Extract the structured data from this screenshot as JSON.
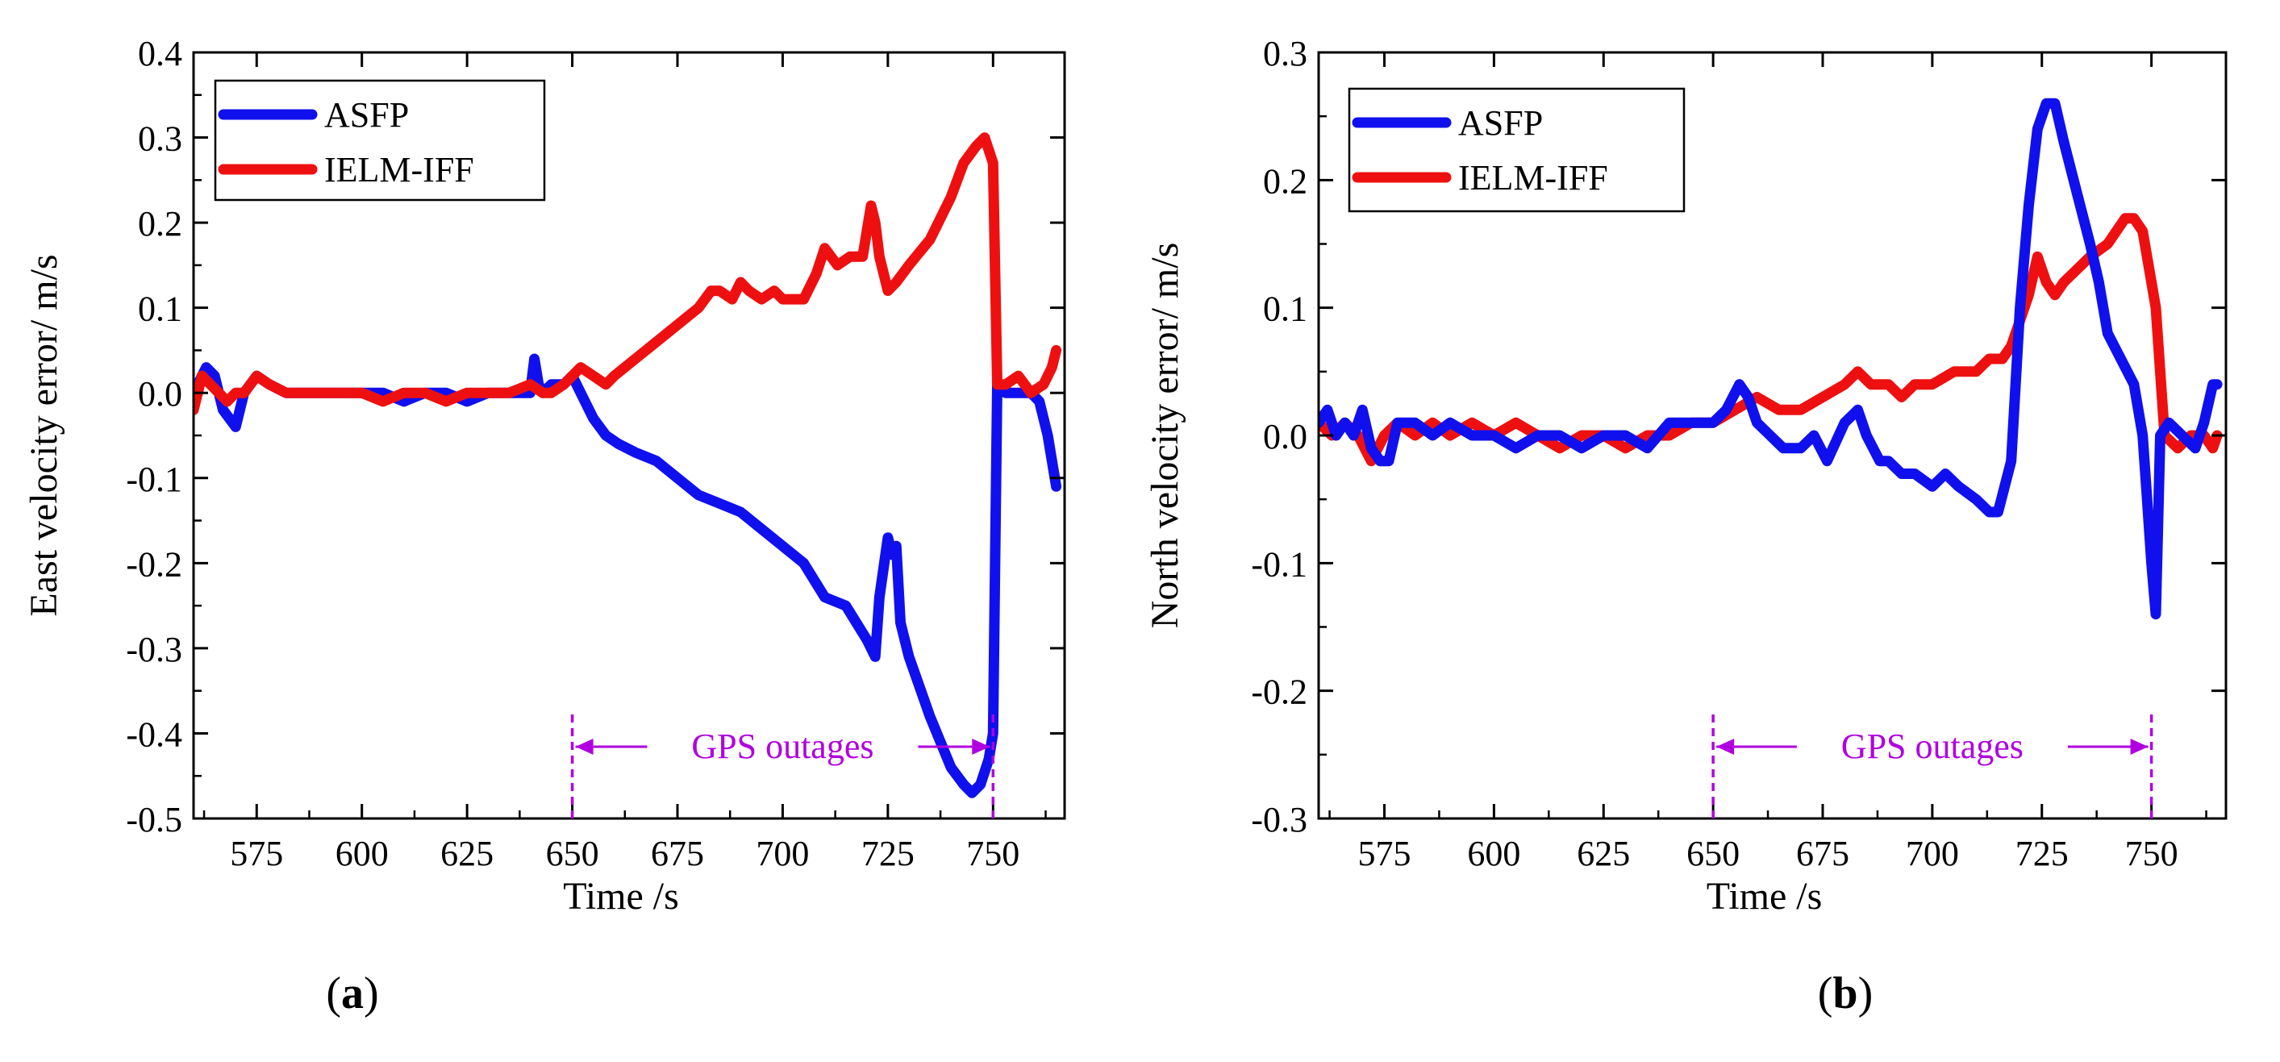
{
  "colors": {
    "asfp": "#1010ee",
    "ielm": "#ee1010",
    "outage": "#b000e0",
    "axis": "#000000"
  },
  "chart_data": [
    {
      "type": "line",
      "panel_open": "(",
      "panel_letter": "a",
      "panel_close": ")",
      "xlabel": "Time /s",
      "ylabel": "East velocity error/ m/s",
      "xlim": [
        560,
        767
      ],
      "ylim": [
        -0.5,
        0.4
      ],
      "xticks": [
        575,
        600,
        625,
        650,
        675,
        700,
        725,
        750
      ],
      "xtick_labels": [
        "575",
        "600",
        "625",
        "650",
        "675",
        "700",
        "725",
        "750"
      ],
      "yticks": [
        -0.5,
        -0.4,
        -0.3,
        -0.2,
        -0.1,
        0.0,
        0.1,
        0.2,
        0.3,
        0.4
      ],
      "ytick_labels": [
        "-0.5",
        "-0.4",
        "-0.3",
        "-0.2",
        "-0.1",
        "0.0",
        "0.1",
        "0.2",
        "0.3",
        "0.4"
      ],
      "legend": [
        "ASFP",
        "IELM-IFF"
      ],
      "legend_position": "top-left",
      "outage": {
        "start": 650,
        "end": 750,
        "label": "GPS outages"
      },
      "series": [
        {
          "name": "ASFP",
          "x": [
            560,
            563,
            565,
            567,
            570,
            572,
            575,
            578,
            582,
            586,
            590,
            595,
            600,
            605,
            610,
            615,
            620,
            625,
            630,
            635,
            640,
            641,
            642,
            643,
            645,
            648,
            650,
            652,
            655,
            658,
            661,
            665,
            670,
            675,
            680,
            685,
            690,
            695,
            700,
            705,
            710,
            715,
            720,
            722,
            723,
            725,
            726,
            727,
            728,
            730,
            735,
            740,
            743,
            745,
            747,
            749,
            750,
            751,
            753,
            756,
            759,
            761,
            763,
            765
          ],
          "values": [
            0.0,
            0.03,
            0.02,
            -0.02,
            -0.04,
            0.0,
            0.02,
            0.01,
            0.0,
            0.0,
            0.0,
            0.0,
            0.0,
            0.0,
            -0.01,
            0.0,
            0.0,
            -0.01,
            0.0,
            0.0,
            0.0,
            0.04,
            0.01,
            0.0,
            0.01,
            0.01,
            0.02,
            0.0,
            -0.03,
            -0.05,
            -0.06,
            -0.07,
            -0.08,
            -0.1,
            -0.12,
            -0.13,
            -0.14,
            -0.16,
            -0.18,
            -0.2,
            -0.24,
            -0.25,
            -0.29,
            -0.31,
            -0.24,
            -0.17,
            -0.19,
            -0.18,
            -0.27,
            -0.31,
            -0.38,
            -0.44,
            -0.46,
            -0.47,
            -0.46,
            -0.43,
            -0.4,
            0.01,
            0.0,
            0.0,
            0.0,
            -0.01,
            -0.05,
            -0.11
          ]
        },
        {
          "name": "IELM-IFF",
          "x": [
            560,
            562,
            564,
            566,
            568,
            570,
            572,
            575,
            578,
            582,
            586,
            590,
            595,
            600,
            605,
            610,
            615,
            620,
            625,
            630,
            635,
            640,
            643,
            645,
            648,
            650,
            652,
            655,
            658,
            660,
            665,
            670,
            675,
            680,
            683,
            685,
            688,
            690,
            692,
            695,
            698,
            700,
            705,
            708,
            710,
            713,
            716,
            719,
            721,
            722,
            723,
            725,
            727,
            730,
            735,
            740,
            743,
            746,
            748,
            750,
            751,
            753,
            756,
            759,
            762,
            764,
            765
          ],
          "values": [
            -0.02,
            0.02,
            0.01,
            0.0,
            -0.01,
            0.0,
            0.0,
            0.02,
            0.01,
            0.0,
            0.0,
            0.0,
            0.0,
            0.0,
            -0.01,
            0.0,
            0.0,
            -0.01,
            0.0,
            0.0,
            0.0,
            0.01,
            0.0,
            0.0,
            0.01,
            0.02,
            0.03,
            0.02,
            0.01,
            0.02,
            0.04,
            0.06,
            0.08,
            0.1,
            0.12,
            0.12,
            0.11,
            0.13,
            0.12,
            0.11,
            0.12,
            0.11,
            0.11,
            0.14,
            0.17,
            0.15,
            0.16,
            0.16,
            0.22,
            0.2,
            0.16,
            0.12,
            0.13,
            0.15,
            0.18,
            0.23,
            0.27,
            0.29,
            0.3,
            0.27,
            0.01,
            0.01,
            0.02,
            0.0,
            0.01,
            0.03,
            0.05
          ]
        }
      ]
    },
    {
      "type": "line",
      "panel_open": "(",
      "panel_letter": "b",
      "panel_close": ")",
      "xlabel": "Time /s",
      "ylabel": "North velocity error/ m/s",
      "xlim": [
        560,
        767
      ],
      "ylim": [
        -0.3,
        0.3
      ],
      "xticks": [
        575,
        600,
        625,
        650,
        675,
        700,
        725,
        750
      ],
      "xtick_labels": [
        "575",
        "600",
        "625",
        "650",
        "675",
        "700",
        "725",
        "750"
      ],
      "yticks": [
        -0.3,
        -0.2,
        -0.1,
        0.0,
        0.1,
        0.2,
        0.3
      ],
      "ytick_labels": [
        "-0.3",
        "-0.2",
        "-0.1",
        "0.0",
        "0.1",
        "0.2",
        "0.3"
      ],
      "legend": [
        "ASFP",
        "IELM-IFF"
      ],
      "legend_position": "top-left",
      "outage": {
        "start": 650,
        "end": 750,
        "label": "GPS outages"
      },
      "series": [
        {
          "name": "ASFP",
          "x": [
            560,
            562,
            564,
            566,
            568,
            570,
            572,
            574,
            576,
            578,
            582,
            586,
            590,
            595,
            600,
            605,
            610,
            615,
            620,
            625,
            630,
            635,
            640,
            645,
            650,
            653,
            656,
            658,
            660,
            663,
            666,
            670,
            673,
            676,
            680,
            683,
            685,
            688,
            690,
            693,
            696,
            700,
            703,
            706,
            710,
            713,
            715,
            718,
            720,
            722,
            724,
            726,
            728,
            730,
            733,
            736,
            738,
            740,
            743,
            746,
            748,
            749,
            750,
            751,
            752,
            754,
            757,
            760,
            762,
            764,
            765
          ],
          "values": [
            0.01,
            0.02,
            0.0,
            0.01,
            0.0,
            0.02,
            -0.01,
            -0.02,
            -0.02,
            0.01,
            0.01,
            0.0,
            0.01,
            0.0,
            0.0,
            -0.01,
            0.0,
            0.0,
            -0.01,
            0.0,
            0.0,
            -0.01,
            0.01,
            0.01,
            0.01,
            0.02,
            0.04,
            0.03,
            0.01,
            0.0,
            -0.01,
            -0.01,
            0.0,
            -0.02,
            0.01,
            0.02,
            0.0,
            -0.02,
            -0.02,
            -0.03,
            -0.03,
            -0.04,
            -0.03,
            -0.04,
            -0.05,
            -0.06,
            -0.06,
            -0.02,
            0.1,
            0.18,
            0.24,
            0.26,
            0.26,
            0.23,
            0.19,
            0.15,
            0.12,
            0.08,
            0.06,
            0.04,
            0.0,
            -0.05,
            -0.1,
            -0.14,
            0.0,
            0.01,
            0.0,
            -0.01,
            0.01,
            0.04,
            0.04
          ]
        },
        {
          "name": "IELM-IFF",
          "x": [
            560,
            563,
            566,
            569,
            572,
            575,
            578,
            582,
            586,
            590,
            595,
            600,
            605,
            610,
            615,
            620,
            625,
            630,
            635,
            640,
            645,
            650,
            655,
            660,
            665,
            670,
            675,
            680,
            683,
            686,
            690,
            693,
            696,
            700,
            705,
            710,
            713,
            716,
            718,
            720,
            722,
            724,
            726,
            728,
            730,
            733,
            736,
            740,
            742,
            744,
            746,
            748,
            750,
            751,
            753,
            756,
            759,
            762,
            764,
            765
          ],
          "values": [
            0.01,
            0.0,
            0.01,
            0.0,
            -0.02,
            0.0,
            0.01,
            0.0,
            0.01,
            0.0,
            0.01,
            0.0,
            0.01,
            0.0,
            -0.01,
            0.0,
            0.0,
            -0.01,
            0.0,
            0.0,
            0.01,
            0.01,
            0.02,
            0.03,
            0.02,
            0.02,
            0.03,
            0.04,
            0.05,
            0.04,
            0.04,
            0.03,
            0.04,
            0.04,
            0.05,
            0.05,
            0.06,
            0.06,
            0.07,
            0.09,
            0.11,
            0.14,
            0.12,
            0.11,
            0.12,
            0.13,
            0.14,
            0.15,
            0.16,
            0.17,
            0.17,
            0.16,
            0.12,
            0.1,
            0.0,
            -0.01,
            0.0,
            0.0,
            -0.01,
            0.0
          ]
        }
      ]
    }
  ]
}
